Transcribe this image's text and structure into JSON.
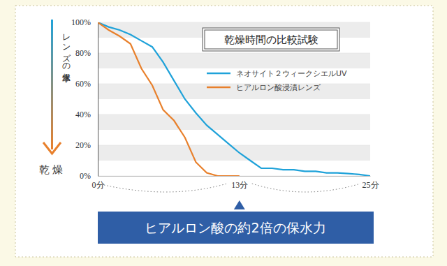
{
  "chart_data": {
    "type": "line",
    "title": "乾燥時間の比較試験",
    "y_label": "レンズの保水率",
    "annotations": [
      "乾燥",
      "ヒアルロン酸の約2倍の保水力"
    ],
    "x": [
      0,
      1,
      2,
      3,
      4,
      5,
      6,
      7,
      8,
      9,
      10,
      11,
      12,
      13,
      14,
      15,
      16,
      17,
      18,
      19,
      20,
      21,
      22,
      23,
      24,
      25
    ],
    "series": [
      {
        "name": "ネオサイト２ウィークシエルUV",
        "color": "#1fa2d9",
        "values": [
          100,
          97,
          95,
          92,
          88,
          84,
          74,
          62,
          50,
          41,
          33,
          27,
          21,
          15,
          10,
          5,
          5,
          4,
          4,
          3,
          3,
          2,
          2,
          1.5,
          1,
          0
        ]
      },
      {
        "name": "ヒアルロン酸浸漬レンズ",
        "color": "#e8802c",
        "values": [
          100,
          95,
          91,
          86,
          70,
          59,
          43,
          36,
          25,
          9,
          2,
          0,
          0,
          0,
          null,
          null,
          null,
          null,
          null,
          null,
          null,
          null,
          null,
          null,
          null,
          null
        ]
      }
    ],
    "xlim": [
      0,
      25
    ],
    "xticks": [
      {
        "value": 0,
        "label": "0分"
      },
      {
        "value": 13,
        "label": "13分"
      },
      {
        "value": 25,
        "label": "25分"
      }
    ],
    "ylim": [
      0,
      100
    ],
    "yticks": [
      {
        "value": 0,
        "label": "0%"
      },
      {
        "value": 20,
        "label": "20%"
      },
      {
        "value": 40,
        "label": "40%"
      },
      {
        "value": 60,
        "label": "60%"
      },
      {
        "value": 80,
        "label": "80%"
      },
      {
        "value": 100,
        "label": "100%"
      }
    ],
    "grid": true,
    "legend": "top-right"
  }
}
